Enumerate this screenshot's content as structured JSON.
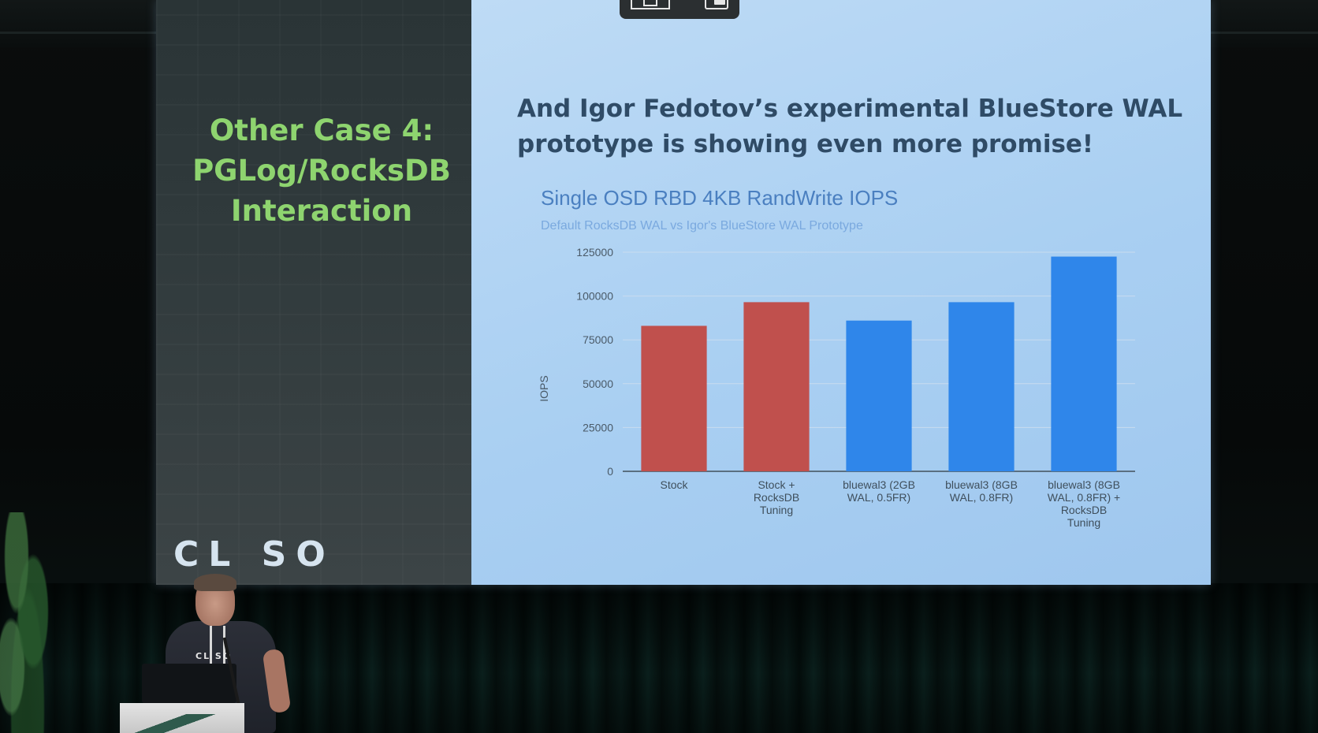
{
  "slide": {
    "left_title_lines": [
      "Other Case 4:",
      "PGLog/RocksDB",
      "Interaction"
    ],
    "logo_text": "CL SO",
    "title_lines": [
      "And Igor Fedotov’s experimental BlueStore WAL",
      "prototype is showing even more promise!"
    ]
  },
  "chart_data": {
    "type": "bar",
    "title": "Single OSD RBD 4KB RandWrite IOPS",
    "subtitle": "Default RocksDB WAL vs Igor's BlueStore WAL Prototype",
    "ylabel": "IOPS",
    "xlabel": "",
    "ylim": [
      0,
      125000
    ],
    "yticks": [
      0,
      25000,
      50000,
      75000,
      100000,
      125000
    ],
    "grid": true,
    "categories": [
      [
        "Stock"
      ],
      [
        "Stock +",
        "RocksDB",
        "Tuning"
      ],
      [
        "bluewal3 (2GB",
        "WAL, 0.5FR)"
      ],
      [
        "bluewal3 (8GB",
        "WAL, 0.8FR)"
      ],
      [
        "bluewal3 (8GB",
        "WAL, 0.8FR) +",
        "RocksDB",
        "Tuning"
      ]
    ],
    "values": [
      83000,
      96500,
      86000,
      96500,
      122500
    ],
    "bar_colors": [
      "#c0504d",
      "#c0504d",
      "#2f86ea",
      "#2f86ea",
      "#2f86ea"
    ]
  },
  "colors": {
    "left_title": "#8ed46f",
    "slide_title": "#2f4b66",
    "chart_title": "#4a7fc0",
    "chart_subtitle": "#7aa9df"
  },
  "icons": {
    "player_left": "picture-in-picture-icon",
    "player_right": "miniplayer-icon"
  },
  "speaker": {
    "shirt_text": "CL SO"
  }
}
